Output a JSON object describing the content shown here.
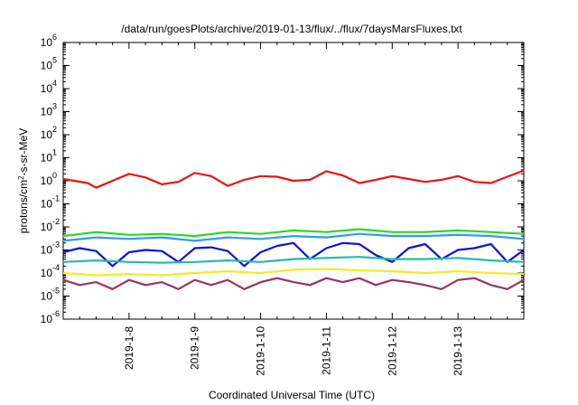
{
  "chart_data": {
    "type": "line",
    "title": "/data/run/goesPlots/archive/2019-01-13/flux/../flux/7daysMarsFluxes.txt",
    "xlabel": "Coordinated Universal Time (UTC)",
    "ylabel": "protons/cm²-s-sr-MeV",
    "ylabel_parts": {
      "base": "protons/cm",
      "sup": "2",
      "rest": "-s-sr-MeV"
    },
    "y_scale": "log",
    "ylim": [
      1e-06,
      1000000.0
    ],
    "y_ticks": [
      {
        "value": 1e-06,
        "base": "10",
        "exp": "-6"
      },
      {
        "value": 1e-05,
        "base": "10",
        "exp": "-5"
      },
      {
        "value": 0.0001,
        "base": "10",
        "exp": "-4"
      },
      {
        "value": 0.001,
        "base": "10",
        "exp": "-3"
      },
      {
        "value": 0.01,
        "base": "10",
        "exp": "-2"
      },
      {
        "value": 0.1,
        "base": "10",
        "exp": "-1"
      },
      {
        "value": 1,
        "base": "10",
        "exp": "0"
      },
      {
        "value": 10,
        "base": "10",
        "exp": "1"
      },
      {
        "value": 100,
        "base": "10",
        "exp": "2"
      },
      {
        "value": 1000,
        "base": "10",
        "exp": "3"
      },
      {
        "value": 10000,
        "base": "10",
        "exp": "4"
      },
      {
        "value": 100000,
        "base": "10",
        "exp": "5"
      },
      {
        "value": 1000000,
        "base": "10",
        "exp": "6"
      }
    ],
    "xlim": [
      "2019-01-07 00:00",
      "2019-01-14 00:00"
    ],
    "x_ticks": [
      {
        "value": "2019-01-08 00:00",
        "label": "2019-1-8"
      },
      {
        "value": "2019-01-09 00:00",
        "label": "2019-1-9"
      },
      {
        "value": "2019-01-10 00:00",
        "label": "2019-1-10"
      },
      {
        "value": "2019-01-11 00:00",
        "label": "2019-1-11"
      },
      {
        "value": "2019-01-12 00:00",
        "label": "2019-1-12"
      },
      {
        "value": "2019-01-13 00:00",
        "label": "2019-1-13"
      }
    ],
    "grid": false,
    "legend": "none",
    "series": [
      {
        "color": "#ee1111",
        "values": [
          [
            "2019-01-07 00:00",
            1.2
          ],
          [
            "2019-01-07 09:00",
            0.8
          ],
          [
            "2019-01-07 12:00",
            0.5
          ],
          [
            "2019-01-07 18:00",
            1.0
          ],
          [
            "2019-01-08 00:00",
            2.0
          ],
          [
            "2019-01-08 06:00",
            1.4
          ],
          [
            "2019-01-08 12:00",
            0.7
          ],
          [
            "2019-01-08 18:00",
            0.9
          ],
          [
            "2019-01-09 00:00",
            2.2
          ],
          [
            "2019-01-09 06:00",
            1.6
          ],
          [
            "2019-01-09 12:00",
            0.6
          ],
          [
            "2019-01-09 18:00",
            1.1
          ],
          [
            "2019-01-10 00:00",
            1.6
          ],
          [
            "2019-01-10 06:00",
            1.5
          ],
          [
            "2019-01-10 12:00",
            1.0
          ],
          [
            "2019-01-10 18:00",
            1.1
          ],
          [
            "2019-01-11 00:00",
            2.6
          ],
          [
            "2019-01-11 06:00",
            1.7
          ],
          [
            "2019-01-11 12:00",
            0.8
          ],
          [
            "2019-01-11 18:00",
            1.1
          ],
          [
            "2019-01-12 00:00",
            1.6
          ],
          [
            "2019-01-12 06:00",
            1.2
          ],
          [
            "2019-01-12 12:00",
            0.9
          ],
          [
            "2019-01-12 18:00",
            1.1
          ],
          [
            "2019-01-13 00:00",
            1.6
          ],
          [
            "2019-01-13 06:00",
            0.9
          ],
          [
            "2019-01-13 12:00",
            0.8
          ],
          [
            "2019-01-13 18:00",
            1.5
          ],
          [
            "2019-01-14 00:00",
            2.8
          ]
        ]
      },
      {
        "color": "#22dd22",
        "values": [
          [
            "2019-01-07 00:00",
            0.004
          ],
          [
            "2019-01-07 12:00",
            0.006
          ],
          [
            "2019-01-08 00:00",
            0.0045
          ],
          [
            "2019-01-08 12:00",
            0.005
          ],
          [
            "2019-01-09 00:00",
            0.004
          ],
          [
            "2019-01-09 12:00",
            0.006
          ],
          [
            "2019-01-10 00:00",
            0.005
          ],
          [
            "2019-01-10 12:00",
            0.007
          ],
          [
            "2019-01-11 00:00",
            0.006
          ],
          [
            "2019-01-11 12:00",
            0.008
          ],
          [
            "2019-01-12 00:00",
            0.006
          ],
          [
            "2019-01-12 12:00",
            0.006
          ],
          [
            "2019-01-13 00:00",
            0.007
          ],
          [
            "2019-01-13 12:00",
            0.006
          ],
          [
            "2019-01-14 00:00",
            0.005
          ]
        ]
      },
      {
        "color": "#3399ee",
        "values": [
          [
            "2019-01-07 00:00",
            0.0025
          ],
          [
            "2019-01-07 12:00",
            0.0035
          ],
          [
            "2019-01-08 00:00",
            0.003
          ],
          [
            "2019-01-08 12:00",
            0.0035
          ],
          [
            "2019-01-09 00:00",
            0.0025
          ],
          [
            "2019-01-09 12:00",
            0.0035
          ],
          [
            "2019-01-10 00:00",
            0.003
          ],
          [
            "2019-01-10 12:00",
            0.004
          ],
          [
            "2019-01-11 00:00",
            0.0035
          ],
          [
            "2019-01-11 12:00",
            0.005
          ],
          [
            "2019-01-12 00:00",
            0.004
          ],
          [
            "2019-01-12 12:00",
            0.004
          ],
          [
            "2019-01-13 00:00",
            0.0045
          ],
          [
            "2019-01-13 12:00",
            0.004
          ],
          [
            "2019-01-14 00:00",
            0.003
          ]
        ]
      },
      {
        "color": "#1111dd",
        "values": [
          [
            "2019-01-07 00:00",
            0.0008
          ],
          [
            "2019-01-07 06:00",
            0.0012
          ],
          [
            "2019-01-07 12:00",
            0.0009
          ],
          [
            "2019-01-07 18:00",
            0.0002
          ],
          [
            "2019-01-08 00:00",
            0.0008
          ],
          [
            "2019-01-08 06:00",
            0.001
          ],
          [
            "2019-01-08 12:00",
            0.0009
          ],
          [
            "2019-01-08 18:00",
            0.0003
          ],
          [
            "2019-01-09 00:00",
            0.0012
          ],
          [
            "2019-01-09 06:00",
            0.0013
          ],
          [
            "2019-01-09 12:00",
            0.0009
          ],
          [
            "2019-01-09 18:00",
            0.0002
          ],
          [
            "2019-01-10 00:00",
            0.0008
          ],
          [
            "2019-01-10 06:00",
            0.0015
          ],
          [
            "2019-01-10 12:00",
            0.002
          ],
          [
            "2019-01-10 18:00",
            0.0004
          ],
          [
            "2019-01-11 00:00",
            0.0012
          ],
          [
            "2019-01-11 06:00",
            0.002
          ],
          [
            "2019-01-11 12:00",
            0.0018
          ],
          [
            "2019-01-11 18:00",
            0.0006
          ],
          [
            "2019-01-12 00:00",
            0.0003
          ],
          [
            "2019-01-12 06:00",
            0.0012
          ],
          [
            "2019-01-12 12:00",
            0.0018
          ],
          [
            "2019-01-12 18:00",
            0.0004
          ],
          [
            "2019-01-13 00:00",
            0.001
          ],
          [
            "2019-01-13 06:00",
            0.0012
          ],
          [
            "2019-01-13 12:00",
            0.0018
          ],
          [
            "2019-01-13 18:00",
            0.0003
          ],
          [
            "2019-01-14 00:00",
            0.001
          ]
        ]
      },
      {
        "color": "#22bbaa",
        "values": [
          [
            "2019-01-07 00:00",
            0.0003
          ],
          [
            "2019-01-07 12:00",
            0.00035
          ],
          [
            "2019-01-08 00:00",
            0.0003
          ],
          [
            "2019-01-08 12:00",
            0.00028
          ],
          [
            "2019-01-09 00:00",
            0.0003
          ],
          [
            "2019-01-09 12:00",
            0.00035
          ],
          [
            "2019-01-10 00:00",
            0.0003
          ],
          [
            "2019-01-10 12:00",
            0.0004
          ],
          [
            "2019-01-11 00:00",
            0.00045
          ],
          [
            "2019-01-11 12:00",
            0.0005
          ],
          [
            "2019-01-12 00:00",
            0.0004
          ],
          [
            "2019-01-12 12:00",
            0.0004
          ],
          [
            "2019-01-13 00:00",
            0.00045
          ],
          [
            "2019-01-13 12:00",
            0.00035
          ],
          [
            "2019-01-14 00:00",
            0.0003
          ]
        ]
      },
      {
        "color": "#eeee22",
        "values": [
          [
            "2019-01-07 00:00",
            0.0001
          ],
          [
            "2019-01-07 12:00",
            8e-05
          ],
          [
            "2019-01-08 00:00",
            9e-05
          ],
          [
            "2019-01-08 12:00",
            8e-05
          ],
          [
            "2019-01-09 00:00",
            0.0001
          ],
          [
            "2019-01-09 12:00",
            0.00012
          ],
          [
            "2019-01-10 00:00",
            0.0001
          ],
          [
            "2019-01-10 12:00",
            0.00014
          ],
          [
            "2019-01-11 00:00",
            0.00015
          ],
          [
            "2019-01-11 12:00",
            0.00013
          ],
          [
            "2019-01-12 00:00",
            0.00012
          ],
          [
            "2019-01-12 12:00",
            0.0001
          ],
          [
            "2019-01-13 00:00",
            0.00012
          ],
          [
            "2019-01-13 12:00",
            0.0001
          ],
          [
            "2019-01-14 00:00",
            9e-05
          ]
        ]
      },
      {
        "color": "#993366",
        "values": [
          [
            "2019-01-07 00:00",
            5e-05
          ],
          [
            "2019-01-07 06:00",
            3e-05
          ],
          [
            "2019-01-07 12:00",
            4e-05
          ],
          [
            "2019-01-07 18:00",
            2e-05
          ],
          [
            "2019-01-08 00:00",
            5e-05
          ],
          [
            "2019-01-08 06:00",
            3e-05
          ],
          [
            "2019-01-08 12:00",
            4e-05
          ],
          [
            "2019-01-08 18:00",
            2e-05
          ],
          [
            "2019-01-09 00:00",
            5e-05
          ],
          [
            "2019-01-09 06:00",
            3e-05
          ],
          [
            "2019-01-09 12:00",
            5e-05
          ],
          [
            "2019-01-09 18:00",
            2e-05
          ],
          [
            "2019-01-10 00:00",
            4e-05
          ],
          [
            "2019-01-10 06:00",
            6e-05
          ],
          [
            "2019-01-10 12:00",
            4e-05
          ],
          [
            "2019-01-10 18:00",
            3e-05
          ],
          [
            "2019-01-11 00:00",
            6e-05
          ],
          [
            "2019-01-11 06:00",
            4e-05
          ],
          [
            "2019-01-11 12:00",
            6e-05
          ],
          [
            "2019-01-11 18:00",
            3e-05
          ],
          [
            "2019-01-12 00:00",
            5e-05
          ],
          [
            "2019-01-12 06:00",
            4e-05
          ],
          [
            "2019-01-12 12:00",
            3e-05
          ],
          [
            "2019-01-12 18:00",
            2e-05
          ],
          [
            "2019-01-13 00:00",
            5e-05
          ],
          [
            "2019-01-13 06:00",
            6e-05
          ],
          [
            "2019-01-13 12:00",
            3e-05
          ],
          [
            "2019-01-13 18:00",
            2e-05
          ],
          [
            "2019-01-14 00:00",
            5e-05
          ]
        ]
      }
    ]
  }
}
